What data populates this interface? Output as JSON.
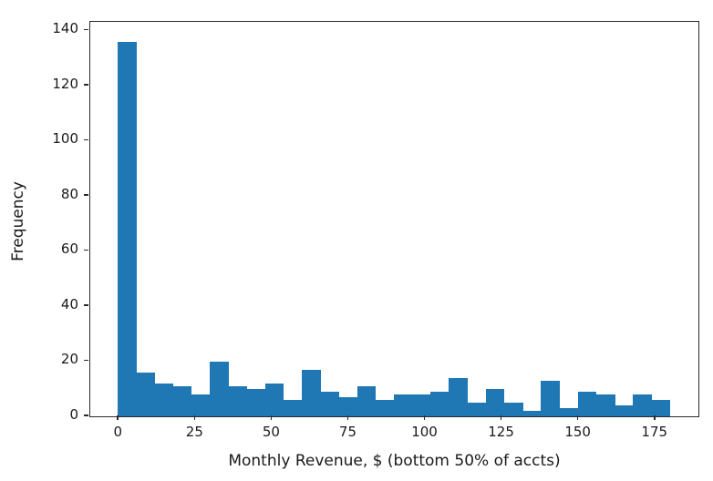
{
  "figure": {
    "background": "#ffffff",
    "frame_color": "#2a2a2a",
    "text_color": "#1a1a1a"
  },
  "chart_data": {
    "type": "bar",
    "subtype": "histogram",
    "title": "",
    "xlabel": "Monthly Revenue, $ (bottom 50% of accts)",
    "ylabel": "Frequency",
    "bar_color": "#1f77b4",
    "bin_width": 6,
    "bin_edges": [
      0,
      6,
      12,
      18,
      24,
      30,
      36,
      42,
      48,
      54,
      60,
      66,
      72,
      78,
      84,
      90,
      96,
      102,
      108,
      114,
      120,
      126,
      132,
      138,
      144,
      150,
      156,
      162,
      168,
      174,
      180
    ],
    "values": [
      136,
      16,
      12,
      11,
      8,
      20,
      11,
      10,
      12,
      6,
      17,
      9,
      7,
      11,
      6,
      8,
      8,
      9,
      14,
      5,
      10,
      5,
      2,
      13,
      3,
      9,
      8,
      4,
      8,
      6
    ],
    "xticks": [
      0,
      25,
      50,
      75,
      100,
      125,
      150,
      175
    ],
    "yticks": [
      0,
      20,
      40,
      60,
      80,
      100,
      120,
      140
    ],
    "xlim": [
      -9,
      189
    ],
    "ylim": [
      0,
      142.8
    ],
    "grid": false,
    "legend_position": "none"
  }
}
